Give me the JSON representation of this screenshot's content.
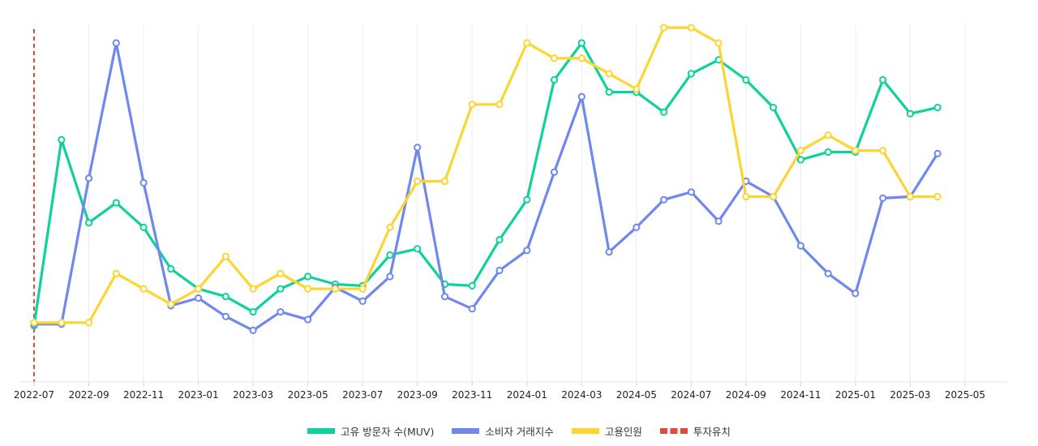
{
  "chart_data": {
    "type": "line",
    "x": [
      "2022-07",
      "2022-08",
      "2022-09",
      "2022-10",
      "2022-11",
      "2022-12",
      "2023-01",
      "2023-02",
      "2023-03",
      "2023-04",
      "2023-05",
      "2023-06",
      "2023-07",
      "2023-08",
      "2023-09",
      "2023-10",
      "2023-11",
      "2023-12",
      "2024-01",
      "2024-02",
      "2024-03",
      "2024-04",
      "2024-05",
      "2024-06",
      "2024-07",
      "2024-08",
      "2024-09",
      "2024-10",
      "2024-11",
      "2024-12",
      "2025-01",
      "2025-02",
      "2025-03",
      "2025-04"
    ],
    "x_ticks": [
      "2022-07",
      "2022-09",
      "2022-11",
      "2023-01",
      "2023-03",
      "2023-05",
      "2023-07",
      "2023-09",
      "2023-11",
      "2024-01",
      "2024-03",
      "2024-05",
      "2024-07",
      "2024-09",
      "2024-11",
      "2025-01",
      "2025-03",
      "2025-05"
    ],
    "x_range": [
      "2022-07",
      "2025-05"
    ],
    "y_range": [
      0,
      100
    ],
    "grid": "vertical",
    "legend_position": "bottom-center",
    "series": [
      {
        "name": "고유 방문자 수(MUV)",
        "color": "#0fd19a",
        "values": [
          8,
          68.5,
          41.5,
          48,
          40,
          26.5,
          20,
          17.5,
          12.5,
          20,
          24,
          21.5,
          21,
          31,
          33,
          21.5,
          21,
          36,
          49,
          88,
          100,
          84,
          84,
          77.5,
          90,
          94.5,
          88,
          79,
          62,
          64.5,
          64.5,
          88,
          77,
          79
        ]
      },
      {
        "name": "소비자 거래지수",
        "color": "#7088ee",
        "values": [
          8.5,
          8.5,
          56,
          100,
          54.5,
          14.5,
          17,
          11,
          6.5,
          12.5,
          10,
          20.5,
          16,
          24,
          66,
          17.5,
          13.5,
          26,
          32.5,
          58,
          82.5,
          32,
          40,
          49,
          51.5,
          42,
          55,
          50,
          34,
          25,
          18.5,
          49.5,
          50,
          64
        ]
      },
      {
        "name": "고용인원",
        "color": "#fdd530",
        "values": [
          9,
          9,
          9,
          25,
          20,
          15,
          20,
          30.5,
          20,
          25,
          20,
          20,
          20,
          40,
          55,
          55,
          80,
          80,
          100,
          95,
          95,
          90,
          85,
          105,
          105,
          100,
          50,
          50,
          65,
          70,
          65,
          65,
          50,
          50
        ]
      }
    ],
    "annotation": {
      "name": "투자유치",
      "x": "2022-07",
      "color": "#e04a3c",
      "style": "dashed"
    }
  }
}
